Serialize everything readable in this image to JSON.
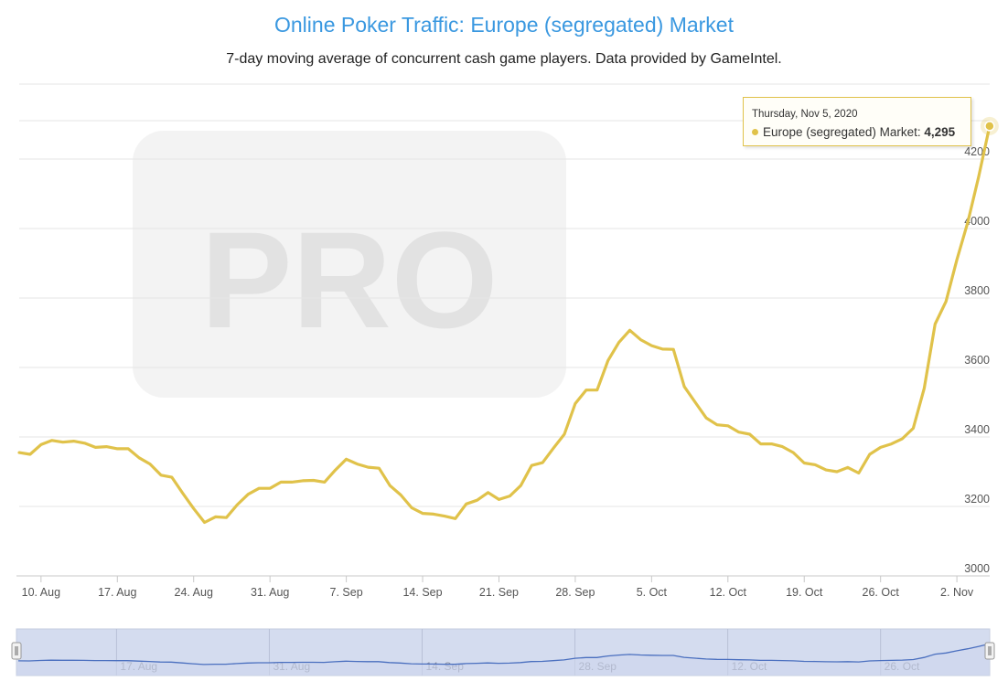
{
  "colors": {
    "title": "#3a98e0",
    "series": "#e0c24a",
    "navigator_line": "#4a6fbf",
    "navigator_fill": "#cdd6ec"
  },
  "watermark_text": "PRO",
  "tooltip": {
    "date": "Thursday, Nov 5, 2020",
    "series_label": "Europe (segregated) Market:",
    "value": "4,295"
  },
  "navigator": {
    "labels": [
      "17. Aug",
      "31. Aug",
      "14. Sep",
      "28. Sep",
      "12. Oct",
      "26. Oct"
    ]
  },
  "chart_data": {
    "type": "line",
    "title": "Online Poker Traffic: Europe (segregated) Market",
    "subtitle": "7-day moving average of concurrent cash game players. Data provided by GameIntel.",
    "x_ticks": [
      "10. Aug",
      "17. Aug",
      "24. Aug",
      "31. Aug",
      "7. Sep",
      "14. Sep",
      "21. Sep",
      "28. Sep",
      "5. Oct",
      "12. Oct",
      "19. Oct",
      "26. Oct",
      "2. Nov"
    ],
    "y_ticks": [
      3000,
      3200,
      3400,
      3600,
      3800,
      4000,
      4200
    ],
    "ylim": [
      3000,
      4300
    ],
    "grid": true,
    "series": [
      {
        "start_date": "2020-08-08",
        "values": [
          3355,
          3350,
          3378,
          3390,
          3385,
          3388,
          3382,
          3370,
          3372,
          3366,
          3366,
          3340,
          3322,
          3290,
          3284,
          3238,
          3194,
          3154,
          3170,
          3168,
          3205,
          3235,
          3252,
          3252,
          3270,
          3270,
          3274,
          3275,
          3270,
          3305,
          3336,
          3322,
          3313,
          3310,
          3260,
          3233,
          3196,
          3180,
          3178,
          3172,
          3165,
          3207,
          3218,
          3240,
          3220,
          3230,
          3260,
          3318,
          3326,
          3368,
          3408,
          3496,
          3535,
          3535,
          3620,
          3672,
          3707,
          3680,
          3663,
          3653,
          3652,
          3545,
          3500,
          3455,
          3435,
          3432,
          3414,
          3408,
          3380,
          3380,
          3372,
          3355,
          3325,
          3320,
          3305,
          3300,
          3312,
          3296,
          3350,
          3370,
          3380,
          3395,
          3425,
          3540,
          3725,
          3790,
          3910,
          4018,
          4150,
          4295
        ]
      }
    ]
  }
}
